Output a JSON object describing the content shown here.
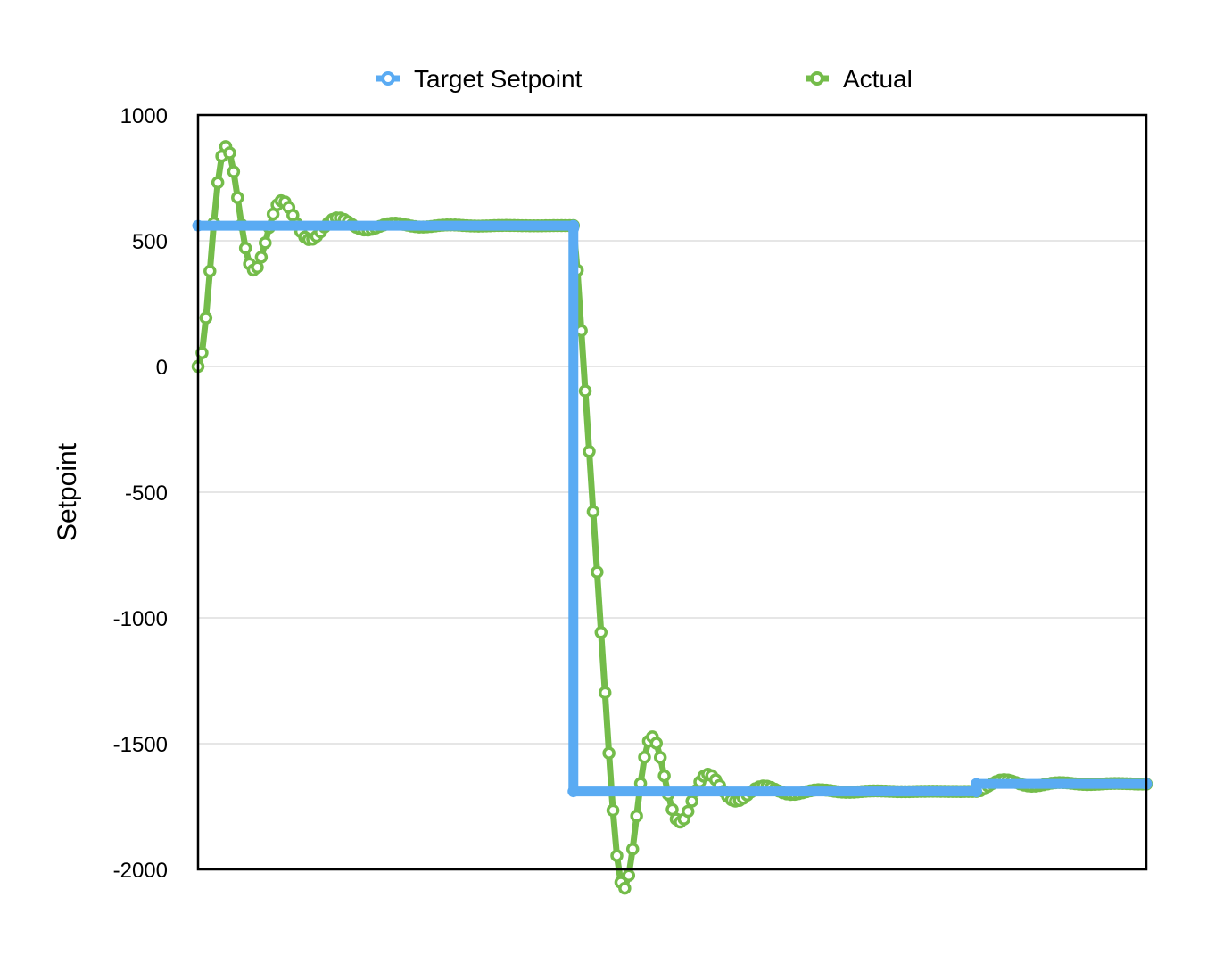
{
  "chart_data": {
    "type": "line",
    "title": "",
    "xlabel": "",
    "ylabel": "Setpoint",
    "ylim": [
      -2000,
      1000
    ],
    "yticks": [
      1000,
      500,
      0,
      -500,
      -1000,
      -1500,
      -2000
    ],
    "xlim": [
      0,
      120
    ],
    "grid": true,
    "legend": "top",
    "series": [
      {
        "name": "Target Setpoint",
        "color": "#5aabf3",
        "marker": "circle",
        "points": [
          [
            0,
            560
          ],
          [
            47.5,
            560
          ],
          [
            47.5,
            550
          ],
          [
            47.5,
            -1690
          ],
          [
            98.5,
            -1690
          ],
          [
            98.5,
            -1660
          ],
          [
            120,
            -1660
          ]
        ]
      },
      {
        "name": "Actual",
        "color": "#74bc4a",
        "marker": "circle",
        "y_start": 0,
        "target_points": [
          [
            0,
            560
          ],
          [
            47.5,
            560
          ],
          [
            47.5,
            -1690
          ],
          [
            98.5,
            -1690
          ],
          [
            98.5,
            -1660
          ],
          [
            120,
            -1660
          ]
        ]
      }
    ]
  }
}
